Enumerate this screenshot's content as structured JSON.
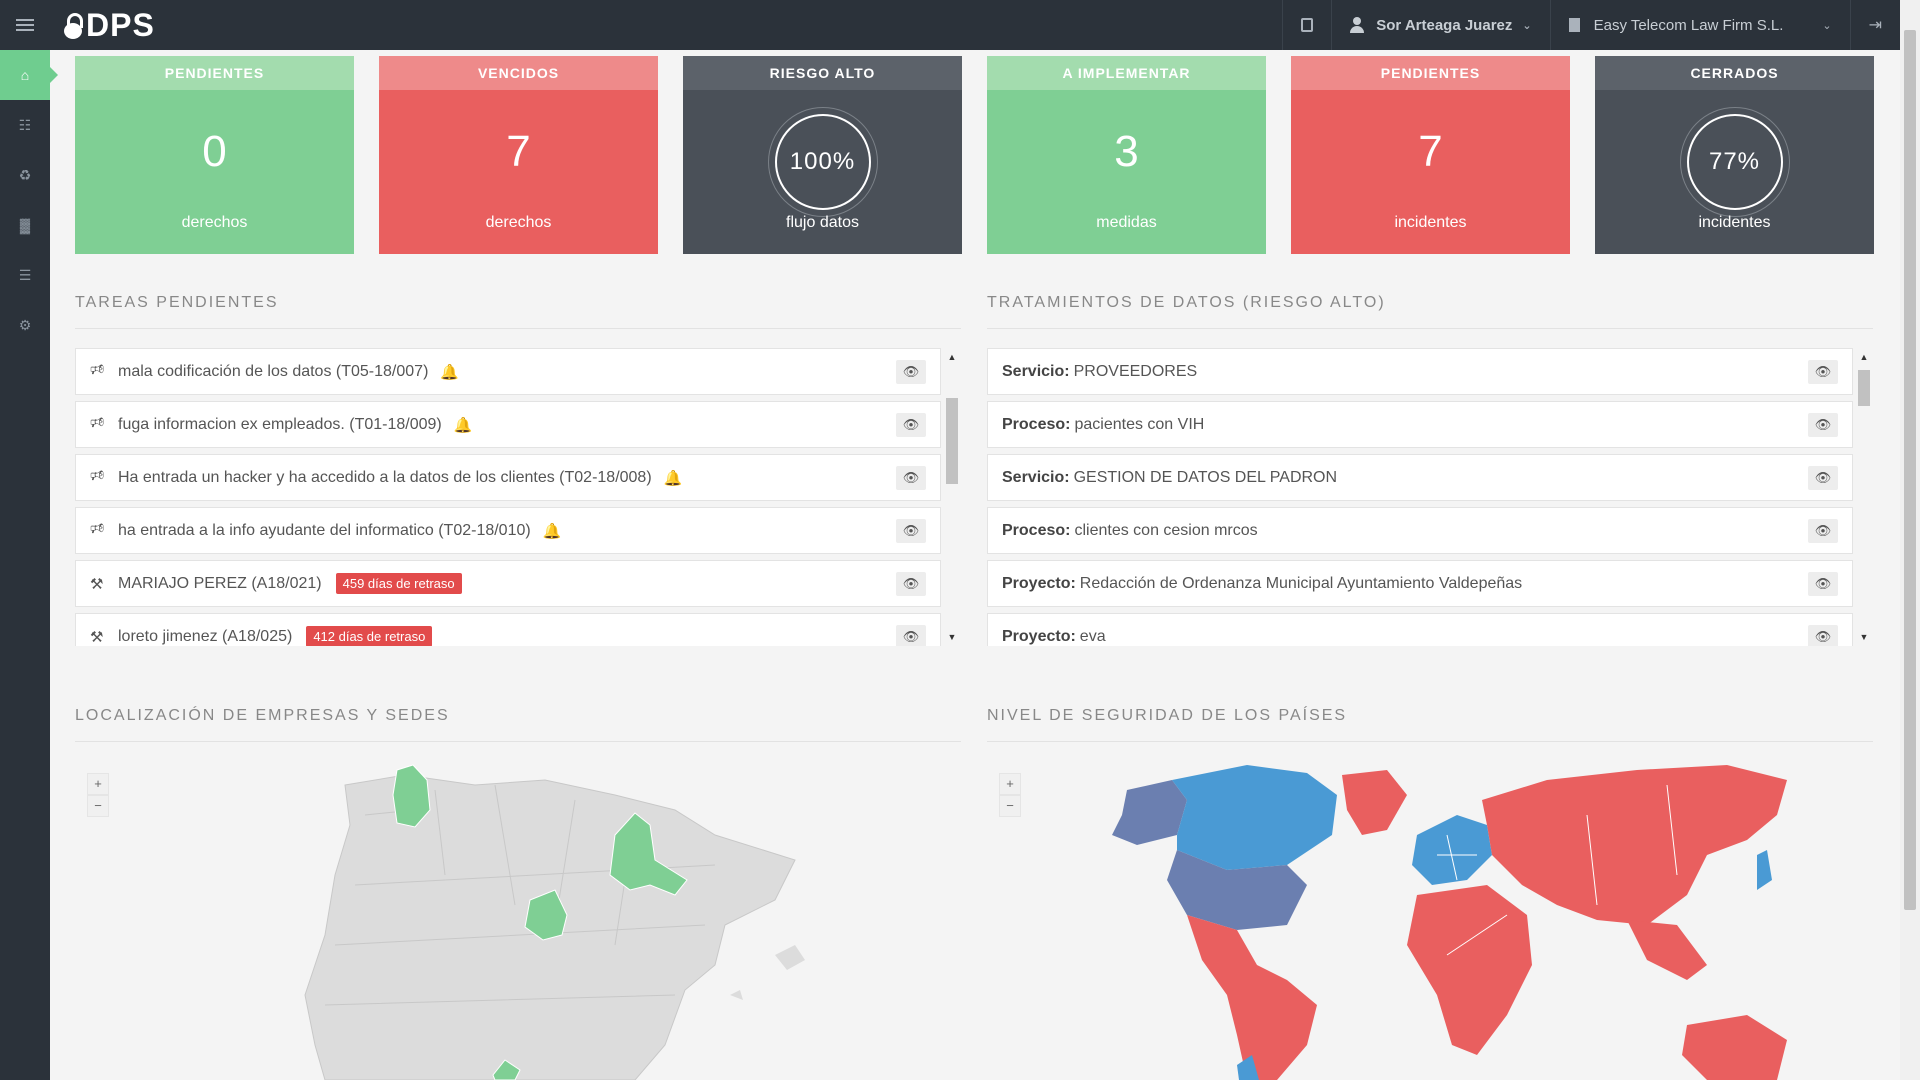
{
  "header": {
    "logo_text": "DPS",
    "user_name": "Sor Arteaga Juarez",
    "company_name": "Easy Telecom Law Firm S.L."
  },
  "sidebar": {
    "items": [
      {
        "icon": "home-icon",
        "active": true
      },
      {
        "icon": "sitemap-icon",
        "active": false
      },
      {
        "icon": "recycle-icon",
        "active": false
      },
      {
        "icon": "bar-chart-icon",
        "active": false
      },
      {
        "icon": "document-icon",
        "active": false
      },
      {
        "icon": "settings-icon",
        "active": false
      }
    ]
  },
  "cards": [
    {
      "title": "PENDIENTES",
      "value": "0",
      "unit": "derechos",
      "style": "green"
    },
    {
      "title": "VENCIDOS",
      "value": "7",
      "unit": "derechos",
      "style": "red"
    },
    {
      "title": "RIESGO ALTO",
      "value": "100%",
      "unit": "flujo datos",
      "style": "dark"
    },
    {
      "title": "A IMPLEMENTAR",
      "value": "3",
      "unit": "medidas",
      "style": "green"
    },
    {
      "title": "PENDIENTES",
      "value": "7",
      "unit": "incidentes",
      "style": "red"
    },
    {
      "title": "CERRADOS",
      "value": "77%",
      "unit": "incidentes",
      "style": "dark"
    }
  ],
  "tasks": {
    "title": "TAREAS PENDIENTES",
    "items": [
      {
        "text": "mala codificación de los datos (T05-18/007)",
        "icon": "bullhorn-icon",
        "bell": "red"
      },
      {
        "text": "fuga informacion ex empleados. (T01-18/009)",
        "icon": "bullhorn-icon",
        "bell": "gray"
      },
      {
        "text": "Ha entrada un hacker y ha accedido a la datos de los clientes (T02-18/008)",
        "icon": "bullhorn-icon",
        "bell": "gray"
      },
      {
        "text": "ha entrada a la info ayudante del informatico (T02-18/010)",
        "icon": "bullhorn-icon",
        "bell": "red"
      },
      {
        "text": "MARIAJO PEREZ (A18/021)",
        "icon": "gavel-icon",
        "badge": "459 días de retraso"
      },
      {
        "text": "loreto jimenez (A18/025)",
        "icon": "gavel-icon",
        "badge": "412 días de retraso"
      }
    ]
  },
  "treatments": {
    "title": "TRATAMIENTOS DE DATOS (RIESGO ALTO)",
    "items": [
      {
        "label": "Servicio:",
        "value": "PROVEEDORES"
      },
      {
        "label": "Proceso:",
        "value": "pacientes con VIH"
      },
      {
        "label": "Servicio:",
        "value": "GESTION DE DATOS DEL PADRON"
      },
      {
        "label": "Proceso:",
        "value": "clientes con cesion mrcos"
      },
      {
        "label": "Proyecto:",
        "value": "Redacción de Ordenanza Municipal Ayuntamiento Valdepeñas"
      },
      {
        "label": "Proyecto:",
        "value": "eva"
      }
    ]
  },
  "map_spain": {
    "title": "LOCALIZACIÓN DE EMPRESAS Y SEDES",
    "zoom_in": "+",
    "zoom_out": "−",
    "colors": {
      "land": "#dcdcdc",
      "highlight": "#7fcf94"
    }
  },
  "map_world": {
    "title": "NIVEL DE SEGURIDAD DE LOS PAÍSES",
    "zoom_in": "+",
    "zoom_out": "−",
    "colors": {
      "high": "#4a9ad4",
      "medium": "#6b7fb0",
      "low": "#e95f5f"
    }
  }
}
